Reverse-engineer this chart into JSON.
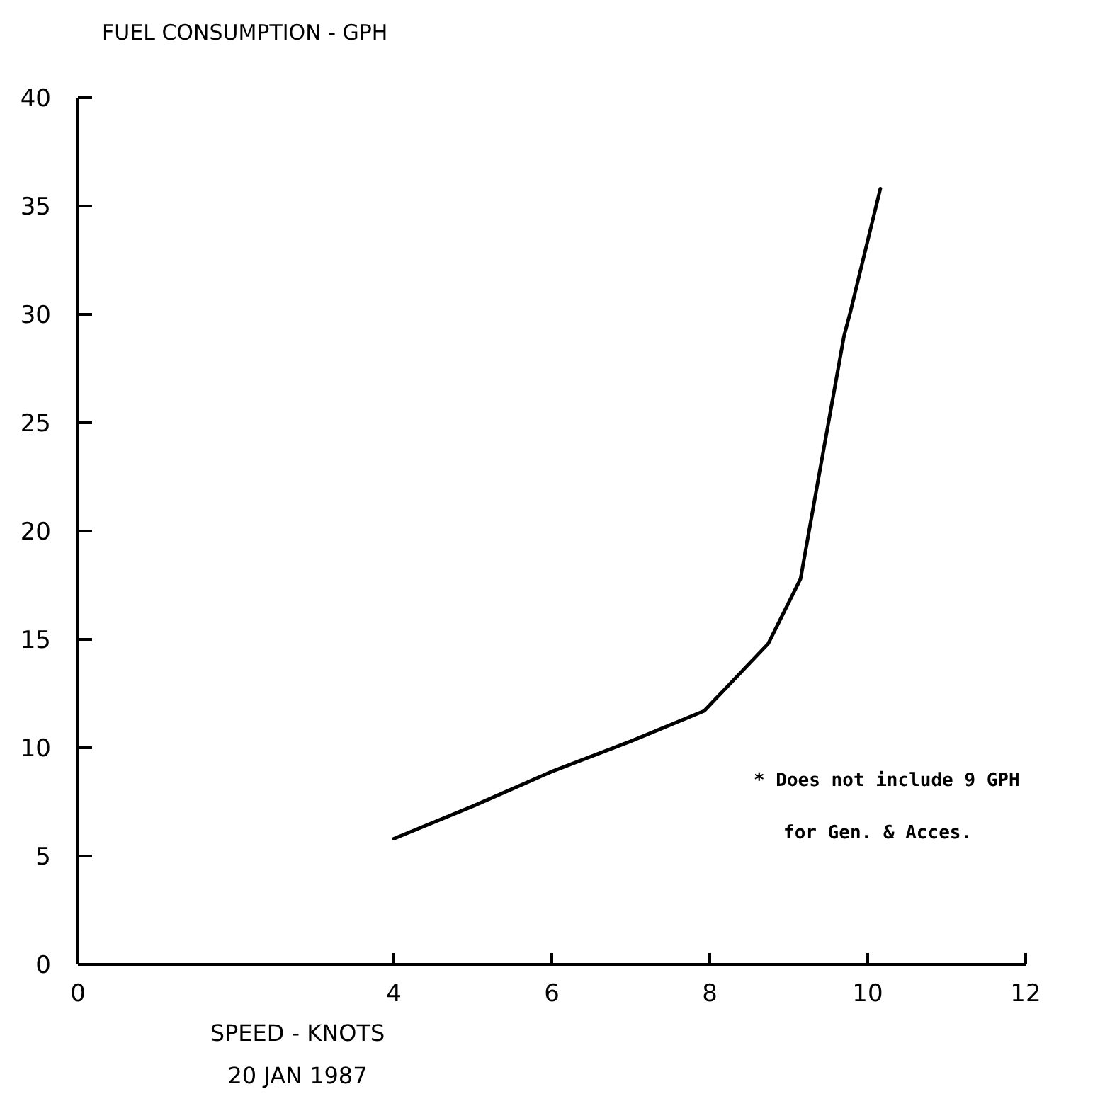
{
  "chart_data": {
    "type": "line",
    "ylabel": "FUEL CONSUMPTION - GPH",
    "xlabel": "SPEED - KNOTS",
    "subtitle": "20 JAN 1987",
    "annotations": [
      "* Does not include 9 GPH",
      "for Gen. & Acces."
    ],
    "x": [
      4,
      5,
      6,
      7,
      7.93,
      8.74,
      9.15,
      9.38,
      9.7,
      9.78,
      10.16
    ],
    "series": [
      {
        "color": "#000000",
        "values": [
          5.8,
          7.3,
          8.9,
          10.3,
          11.7,
          14.8,
          17.8,
          22.5,
          29,
          30.1,
          35.8
        ]
      }
    ],
    "xlim": [
      0,
      12
    ],
    "xticks": [
      0,
      4,
      6,
      8,
      10,
      12
    ],
    "ylim": [
      0,
      40
    ],
    "yticks": [
      0,
      5,
      10,
      15,
      20,
      25,
      30,
      35,
      40
    ],
    "grid": false,
    "marker": "none",
    "line_style": "solid"
  }
}
